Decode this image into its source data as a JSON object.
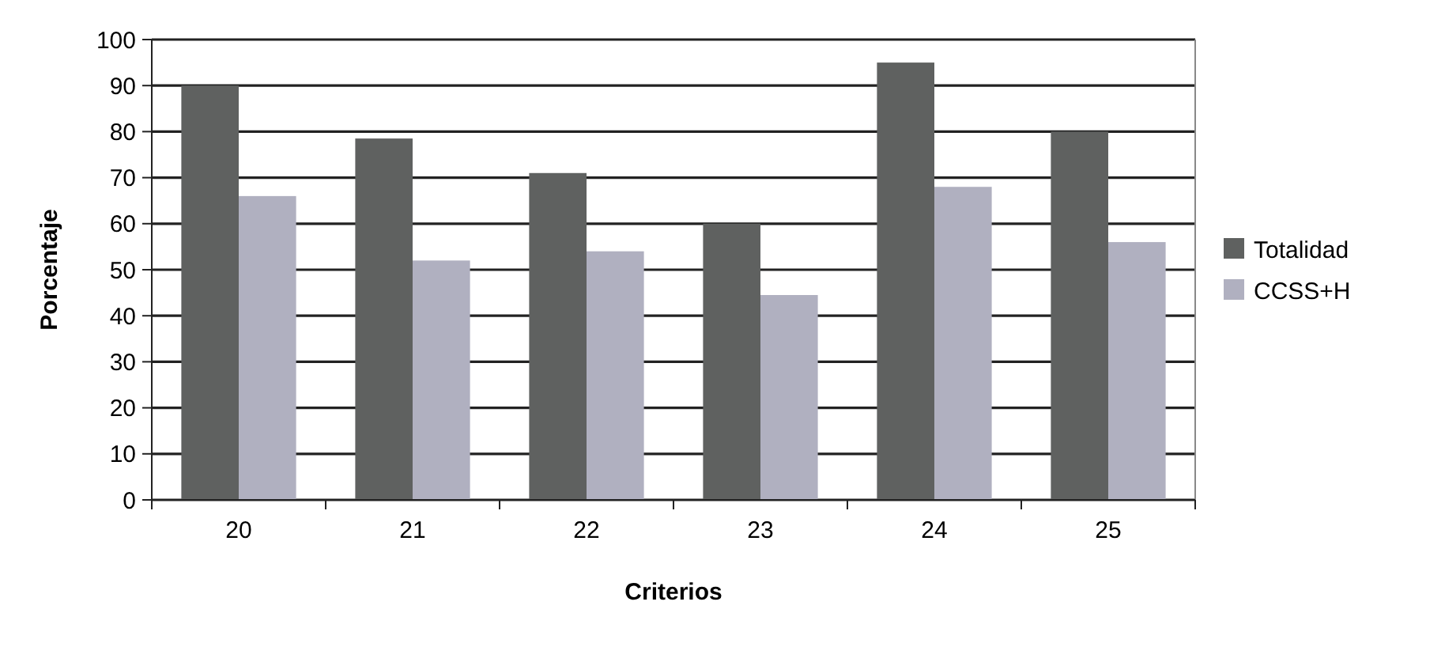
{
  "chart_data": {
    "type": "bar",
    "xlabel": "Criterios",
    "ylabel": "Porcentaje",
    "categories": [
      "20",
      "21",
      "22",
      "23",
      "24",
      "25"
    ],
    "series": [
      {
        "name": "Totalidad",
        "color": "#5f6160",
        "values": [
          90,
          78.5,
          71,
          60,
          95,
          80
        ]
      },
      {
        "name": "CCSS+H",
        "color": "#b0b0c0",
        "values": [
          66,
          52,
          54,
          44.5,
          68,
          56
        ]
      }
    ],
    "ylim": [
      0,
      100
    ],
    "yticks": [
      0,
      10,
      20,
      30,
      40,
      50,
      60,
      70,
      80,
      90,
      100
    ],
    "grid": "y",
    "legend": "right"
  }
}
